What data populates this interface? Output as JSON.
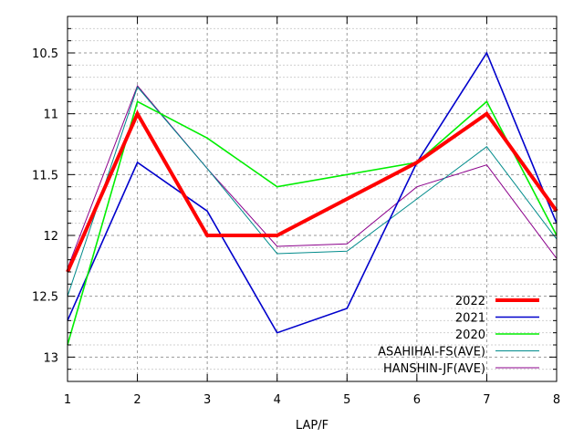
{
  "chart_data": {
    "type": "line",
    "title": "",
    "xlabel": "LAP/F",
    "ylabel": "",
    "x": [
      1,
      2,
      3,
      4,
      5,
      6,
      7,
      8
    ],
    "xlim": [
      1,
      8
    ],
    "ylim": [
      13.2,
      10.2
    ],
    "y_reversed": true,
    "xticks": [
      "1",
      "2",
      "3",
      "4",
      "5",
      "6",
      "7",
      "8"
    ],
    "yticks": [
      10.5,
      11,
      11.5,
      12,
      12.5,
      13
    ],
    "ytick_labels": [
      "10.5",
      "11",
      "11.5",
      "12",
      "12.5",
      "13"
    ],
    "grid": true,
    "legend_position": "bottom-right",
    "series": [
      {
        "name": "2022",
        "color": "#ff0000",
        "width": 4,
        "values": [
          12.3,
          11.0,
          12.0,
          12.0,
          11.7,
          11.4,
          11.0,
          11.8
        ]
      },
      {
        "name": "2021",
        "color": "#0000cc",
        "width": 1.6,
        "values": [
          12.7,
          11.4,
          11.8,
          12.8,
          12.6,
          11.4,
          10.5,
          11.9
        ]
      },
      {
        "name": "2020",
        "color": "#00ee00",
        "width": 1.6,
        "values": [
          12.9,
          10.9,
          11.2,
          11.6,
          11.5,
          11.4,
          10.9,
          12.0
        ]
      },
      {
        "name": "ASAHIHAI-FS(AVE)",
        "color": "#008b8b",
        "width": 1,
        "values": [
          12.5,
          10.78,
          11.45,
          12.15,
          12.13,
          11.7,
          11.27,
          12.03
        ]
      },
      {
        "name": "HANSHIN-JF(AVE)",
        "color": "#8b008b",
        "width": 1,
        "values": [
          12.27,
          10.77,
          11.45,
          12.09,
          12.07,
          11.6,
          11.42,
          12.19
        ]
      }
    ]
  }
}
